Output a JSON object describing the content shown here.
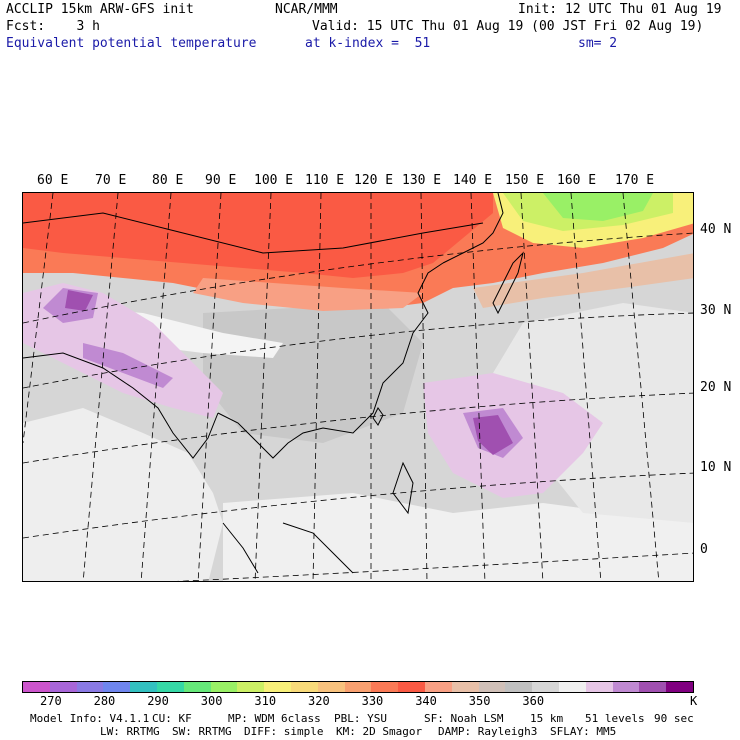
{
  "header": {
    "line1_left": "ACCLIP 15km ARW-GFS init",
    "line1_center": "NCAR/MMM",
    "line1_right": "Init: 12 UTC Thu 01 Aug 19",
    "line2_left": "Fcst:    3 h",
    "line2_right": "Valid: 15 UTC Thu 01 Aug 19 (00 JST Fri 02 Aug 19)",
    "line3_left": "Equivalent potential temperature",
    "line3_center": "at k-index =  51",
    "line3_right": "sm= 2"
  },
  "map": {
    "lon_labels": [
      "60 E",
      "70 E",
      "80 E",
      "90 E",
      "100 E",
      "110 E",
      "120 E",
      "130 E",
      "140 E",
      "150 E",
      "160 E",
      "170 E"
    ],
    "lat_labels": [
      "40 N",
      "30 N",
      "20 N",
      "10 N",
      "0"
    ],
    "field": "Equivalent potential temperature",
    "units": "K",
    "features": [
      {
        "name": "warm band",
        "range_K": "320-335",
        "location": "northern Asia, 35-50 N"
      },
      {
        "name": "cooler air",
        "range_K": "300-315",
        "location": "northeast of Japan"
      },
      {
        "name": "high theta-e",
        "range_K": "360-375",
        "location": "Tibetan Plateau / N India"
      },
      {
        "name": "high theta-e",
        "range_K": "360-375",
        "location": "western Pacific near 15 N 145 E"
      }
    ]
  },
  "colorbar": {
    "colors": [
      "#cc55cc",
      "#a866d8",
      "#8a7ae4",
      "#6f86ee",
      "#33c0c0",
      "#36d8a6",
      "#66e87a",
      "#99f066",
      "#ccf066",
      "#f8f07a",
      "#f8da7a",
      "#f8c27e",
      "#f8a070",
      "#fa7a56",
      "#fa5a44",
      "#f8a084",
      "#e8c0a8",
      "#d0c0b8",
      "#c0c0c0",
      "#d6d6d6",
      "#f0f0f0",
      "#e6c6e6",
      "#c08ad2",
      "#a050b0",
      "#800080"
    ],
    "tick_labels": [
      "270",
      "280",
      "290",
      "300",
      "310",
      "320",
      "330",
      "340",
      "350",
      "360"
    ],
    "units_label": "K"
  },
  "footer": {
    "line1": [
      "Model Info: V4.1.1",
      "CU: KF",
      "MP: WDM 6class",
      "PBL: YSU",
      "SF: Noah LSM",
      "15 km",
      "51 levels",
      "90 sec"
    ],
    "line2": [
      "LW: RRTMG",
      "SW: RRTMG",
      "DIFF: simple",
      "KM: 2D Smagor",
      "DAMP: Rayleigh3",
      "SFLAY: MM5"
    ]
  }
}
